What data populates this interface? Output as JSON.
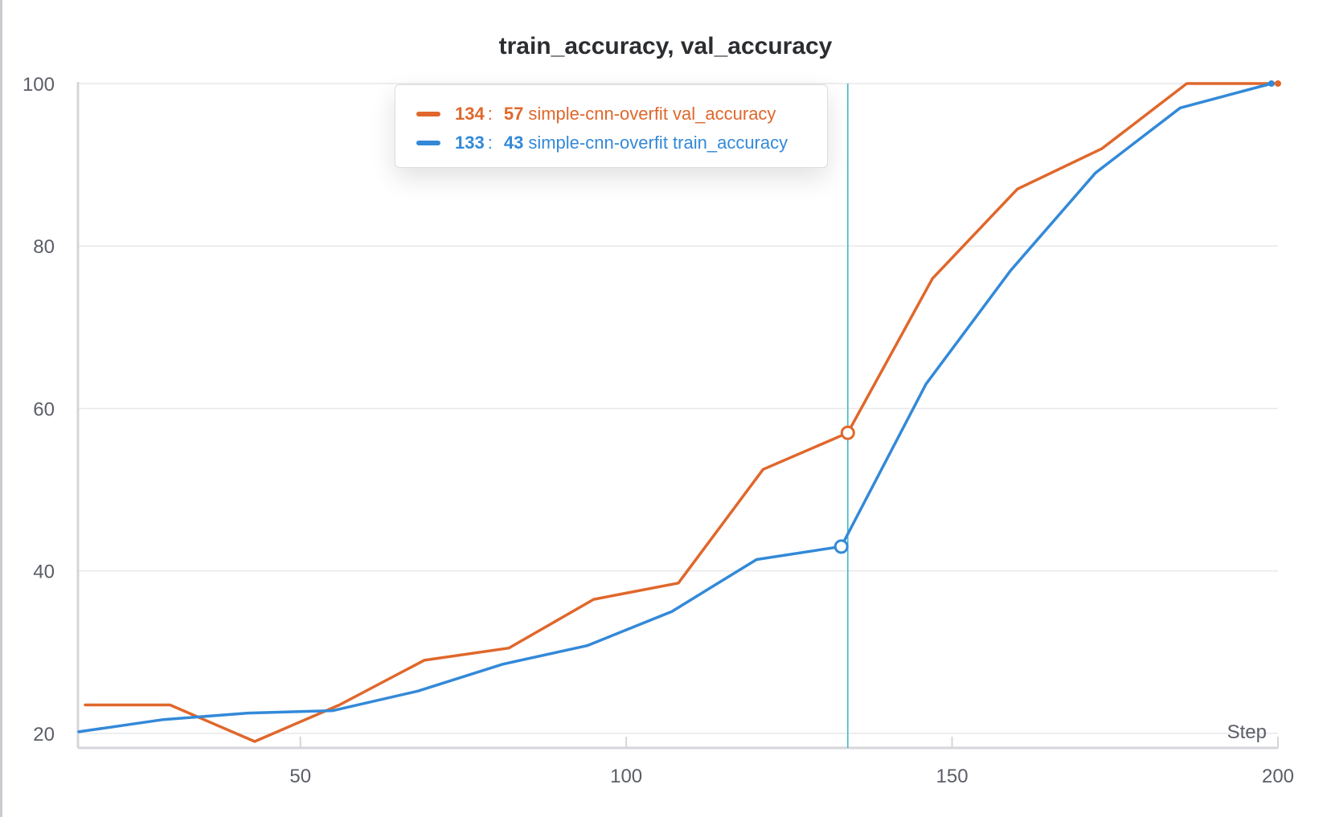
{
  "chart_data": {
    "type": "line",
    "title": "train_accuracy, val_accuracy",
    "xlabel": "Step",
    "ylabel": "",
    "xlim": [
      16,
      200
    ],
    "ylim": [
      19,
      100
    ],
    "x_ticks": [
      50,
      100,
      150,
      200
    ],
    "y_ticks": [
      20,
      40,
      60,
      80,
      100
    ],
    "grid": true,
    "hover_step": 134,
    "series": [
      {
        "name": "simple-cnn-overfit val_accuracy",
        "color": "#e0672b",
        "x": [
          17,
          30,
          43,
          56,
          69,
          82,
          95,
          108,
          121,
          134,
          147,
          160,
          173,
          186,
          200
        ],
        "y": [
          23.5,
          23.5,
          19,
          23.5,
          29,
          30.5,
          36.5,
          38.5,
          52.5,
          57,
          76,
          87,
          92,
          100,
          100
        ]
      },
      {
        "name": "simple-cnn-overfit train_accuracy",
        "color": "#3389d8",
        "x": [
          16,
          29,
          42,
          55,
          68,
          81,
          94,
          107,
          120,
          133,
          146,
          159,
          172,
          185,
          199
        ],
        "y": [
          20.2,
          21.7,
          22.5,
          22.8,
          25.2,
          28.5,
          30.8,
          35,
          41.4,
          43,
          63,
          77,
          89,
          97,
          100
        ]
      }
    ]
  },
  "legend": {
    "rows": [
      {
        "step": "134",
        "colon": ":",
        "value": "57",
        "label": "simple-cnn-overfit val_accuracy",
        "color": "#e0672b"
      },
      {
        "step": "133",
        "colon": ":",
        "value": "43",
        "label": "simple-cnn-overfit train_accuracy",
        "color": "#3389d8"
      }
    ]
  }
}
